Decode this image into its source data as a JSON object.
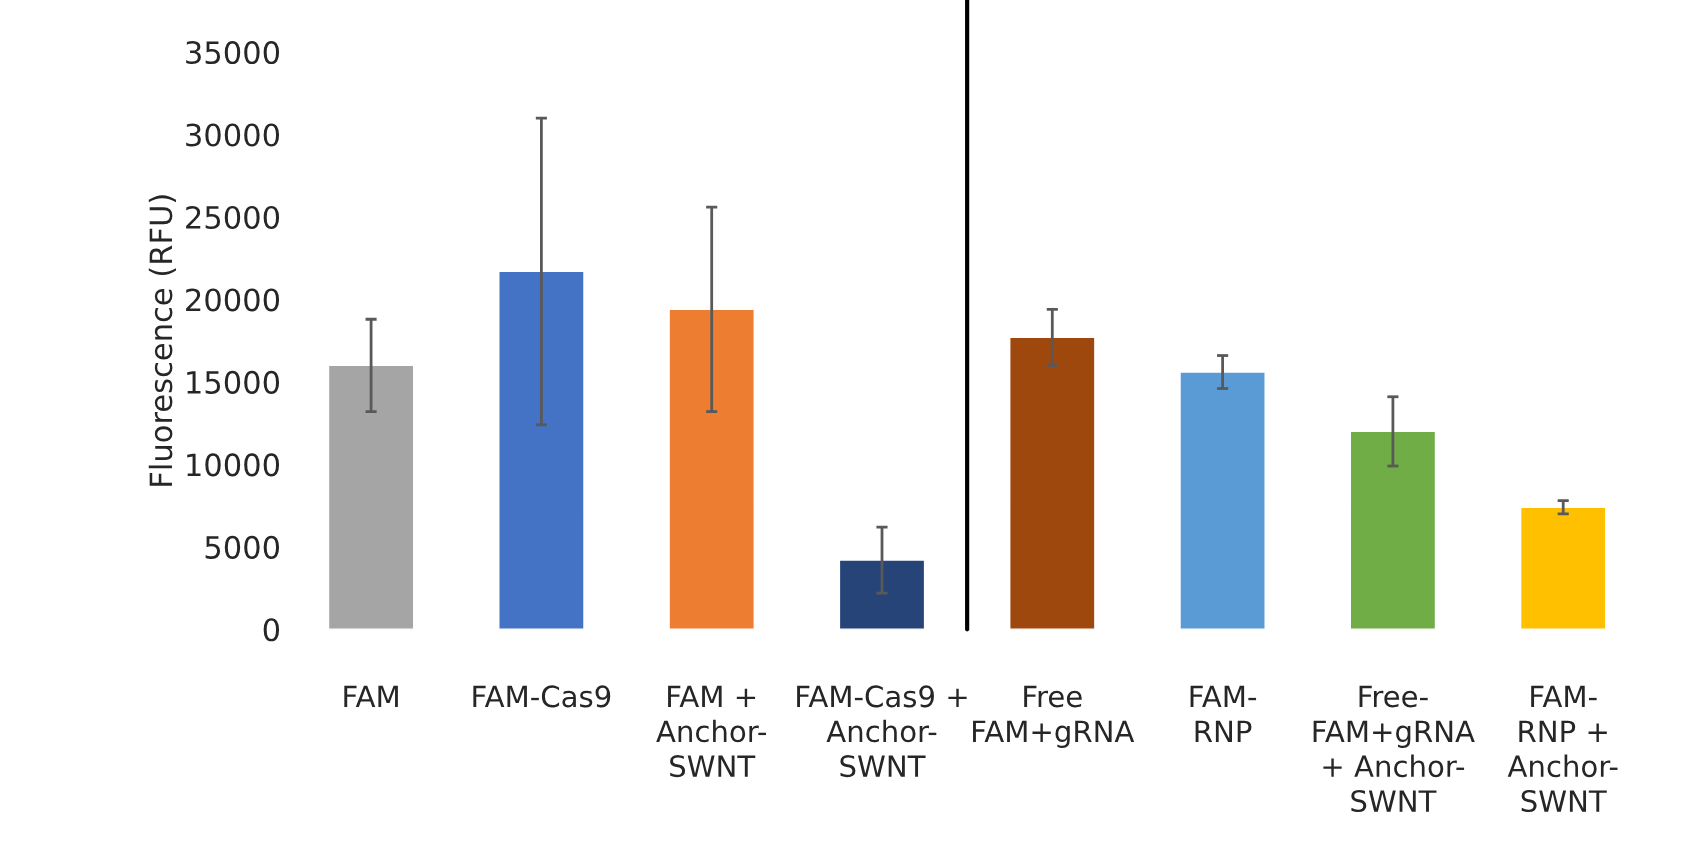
{
  "chart_data": {
    "type": "bar",
    "ylabel": "Fluorescence (RFU)",
    "categories": [
      "FAM",
      "FAM-Cas9",
      "FAM +\nAnchor-\nSWNT",
      "FAM-Cas9 +\nAnchor-\nSWNT",
      "Free\nFAM+gRNA",
      "FAM-\nRNP",
      "Free-\nFAM+gRNA\n+ Anchor-\nSWNT",
      "FAM-\nRNP +\nAnchor-\nSWNT"
    ],
    "values": [
      16000,
      21700,
      19400,
      4200,
      17700,
      15600,
      12000,
      7400
    ],
    "errors": [
      2800,
      9300,
      6200,
      2000,
      1700,
      1000,
      2100,
      400
    ],
    "colors": [
      "#a5a5a5",
      "#4472c4",
      "#ed7d31",
      "#264478",
      "#9e480e",
      "#5b9bd5",
      "#70ad47",
      "#ffc000"
    ],
    "ylim": [
      0,
      35000
    ],
    "yticks": [
      0,
      5000,
      10000,
      15000,
      20000,
      25000,
      30000,
      35000
    ],
    "grid": false,
    "legend": false
  }
}
